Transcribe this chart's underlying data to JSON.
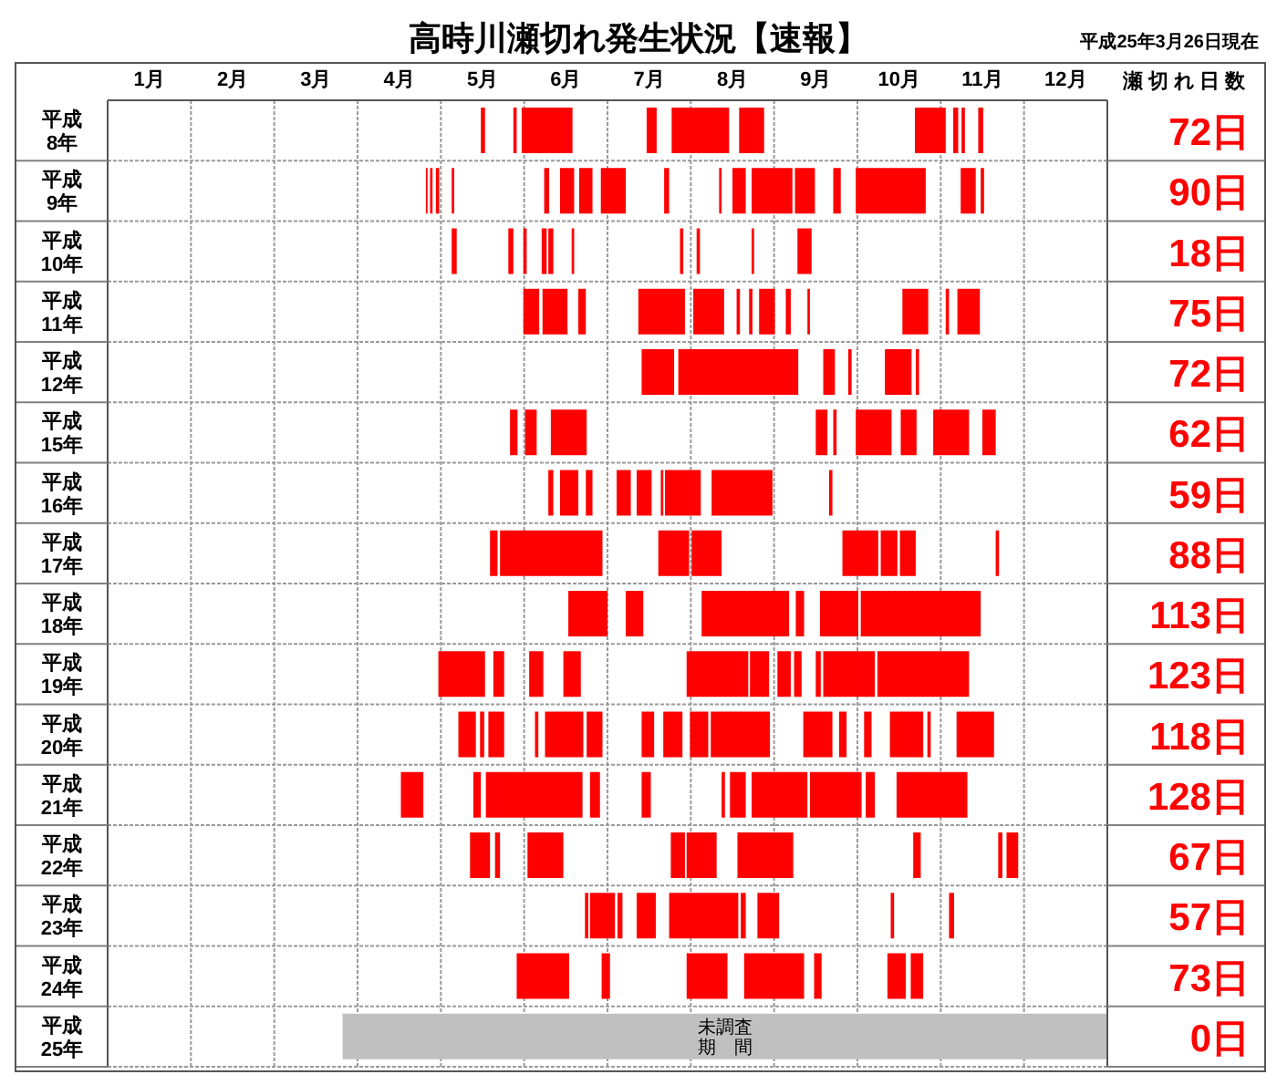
{
  "chart_data": {
    "type": "bar",
    "orientation": "horizontal",
    "title": "高時川瀬切れ発生状況【速報】",
    "annotations": [
      "平成25年3月26日現在",
      "瀬 切 れ 日 数",
      "72日",
      "90日",
      "18日",
      "75日",
      "72日",
      "62日",
      "59日",
      "88日",
      "113日",
      "123日",
      "118日",
      "128日",
      "67日",
      "57日",
      "73日",
      "0日"
    ],
    "categories": [
      "平成\n8年",
      "平成\n9年",
      "平成\n10年",
      "平成\n11年",
      "平成\n12年",
      "平成\n15年",
      "平成\n16年",
      "平成\n17年",
      "平成\n18年",
      "平成\n19年",
      "平成\n20年",
      "平成\n21年",
      "平成\n22年",
      "平成\n23年",
      "平成\n24年",
      "平成\n25年"
    ],
    "xlim": [
      0,
      12
    ],
    "xticks": [
      {
        "value": 0,
        "label": null
      },
      {
        "value": 0.5,
        "label": "1月"
      },
      {
        "value": 1,
        "label": null
      },
      {
        "value": 1.5,
        "label": "2月"
      },
      {
        "value": 2,
        "label": null
      },
      {
        "value": 2.5,
        "label": "3月"
      },
      {
        "value": 3,
        "label": null
      },
      {
        "value": 3.5,
        "label": "4月"
      },
      {
        "value": 4,
        "label": null
      },
      {
        "value": 4.5,
        "label": "5月"
      },
      {
        "value": 5,
        "label": null
      },
      {
        "value": 5.5,
        "label": "6月"
      },
      {
        "value": 6,
        "label": null
      },
      {
        "value": 6.5,
        "label": "7月"
      },
      {
        "value": 7,
        "label": null
      },
      {
        "value": 7.5,
        "label": "8月"
      },
      {
        "value": 8,
        "label": null
      },
      {
        "value": 8.5,
        "label": "9月"
      },
      {
        "value": 9,
        "label": null
      },
      {
        "value": 9.5,
        "label": "10月"
      },
      {
        "value": 10,
        "label": null
      },
      {
        "value": 10.5,
        "label": "11月"
      },
      {
        "value": 11,
        "label": null
      },
      {
        "value": 11.5,
        "label": "12月"
      },
      {
        "value": 12,
        "label": null
      }
    ],
    "grid": true,
    "series": [
      {
        "color": "#ff0000",
        "base": [
          4.48,
          3.82,
          4.13,
          4.99,
          6.41,
          4.83,
          5.29,
          4.59,
          5.53,
          3.97,
          4.21,
          3.52,
          4.35,
          5.73,
          4.91,
          null
        ],
        "values": [
          0.05,
          0.02,
          0.06,
          0.19,
          0.39,
          0.09,
          0.06,
          0.09,
          0.47,
          0.56,
          0.21,
          0.27,
          0.24,
          0.04,
          0.63,
          null
        ]
      },
      {
        "color": "#ff0000",
        "base": [
          4.87,
          3.87,
          4.81,
          5.22,
          6.85,
          5.01,
          5.43,
          4.71,
          6.22,
          4.63,
          4.47,
          4.39,
          4.65,
          5.79,
          5.93,
          null
        ],
        "values": [
          0.04,
          0.03,
          0.06,
          0.3,
          1.44,
          0.14,
          0.22,
          1.23,
          0.21,
          0.13,
          0.05,
          0.09,
          0.06,
          0.3,
          0.1,
          null
        ]
      },
      {
        "color": "#ff0000",
        "base": [
          4.97,
          3.94,
          4.99,
          5.65,
          8.59,
          5.32,
          5.74,
          6.61,
          7.13,
          5.06,
          4.57,
          4.54,
          5.04,
          6.12,
          6.95,
          null
        ],
        "values": [
          0.61,
          0.04,
          0.04,
          0.09,
          0.14,
          0.43,
          0.08,
          0.37,
          1.05,
          0.17,
          0.19,
          1.16,
          0.43,
          0.06,
          0.49,
          null
        ]
      },
      {
        "color": "#ff0000",
        "base": [
          6.47,
          4.13,
          5.21,
          6.37,
          8.89,
          8.5,
          6.11,
          7.01,
          8.26,
          5.47,
          5.13,
          5.79,
          6.76,
          6.35,
          7.64,
          null
        ],
        "values": [
          0.12,
          0.03,
          0.06,
          0.56,
          0.04,
          0.14,
          0.17,
          0.36,
          0.1,
          0.21,
          0.04,
          0.12,
          0.17,
          0.23,
          0.72,
          null
        ]
      },
      {
        "color": "#ff0000",
        "base": [
          6.77,
          5.24,
          5.29,
          7.03,
          9.33,
          8.71,
          6.35,
          8.82,
          8.55,
          6.95,
          5.25,
          6.41,
          6.95,
          6.74,
          8.48,
          null
        ],
        "values": [
          0.69,
          0.06,
          0.06,
          0.37,
          0.32,
          0.04,
          0.18,
          0.43,
          0.46,
          0.74,
          0.46,
          0.11,
          0.36,
          0.83,
          0.09,
          null
        ]
      },
      {
        "color": "#ff0000",
        "base": [
          7.58,
          5.43,
          5.57,
          7.55,
          9.7,
          8.98,
          6.64,
          9.28,
          9.04,
          7.71,
          5.75,
          7.37,
          7.56,
          7.6,
          9.36,
          null
        ],
        "values": [
          0.3,
          0.17,
          0.03,
          0.04,
          0.04,
          0.43,
          0.03,
          0.2,
          1.44,
          0.23,
          0.19,
          0.04,
          0.67,
          0.06,
          0.22,
          null
        ]
      },
      {
        "color": "#ff0000",
        "base": [
          9.69,
          5.66,
          6.87,
          7.7,
          null,
          9.52,
          6.69,
          9.51,
          null,
          8.04,
          6.41,
          7.47,
          9.67,
          7.8,
          9.64,
          null
        ],
        "values": [
          0.37,
          0.16,
          0.04,
          0.04,
          null,
          0.19,
          0.43,
          0.19,
          null,
          0.16,
          0.15,
          0.19,
          0.09,
          0.26,
          0.15,
          null
        ]
      },
      {
        "color": "#ff0000",
        "base": [
          10.15,
          5.92,
          7.07,
          7.82,
          null,
          9.91,
          7.25,
          10.66,
          null,
          8.24,
          6.67,
          7.73,
          10.69,
          9.4,
          null,
          null
        ],
        "values": [
          0.06,
          0.3,
          0.04,
          0.19,
          null,
          0.43,
          0.73,
          0.04,
          null,
          0.09,
          0.23,
          0.67,
          0.05,
          0.04,
          null,
          null
        ]
      },
      {
        "color": "#ff0000",
        "base": [
          10.25,
          6.68,
          7.73,
          8.14,
          null,
          10.5,
          8.66,
          null,
          null,
          8.5,
          6.99,
          8.43,
          10.79,
          10.1,
          null,
          null
        ],
        "values": [
          0.04,
          0.06,
          0.03,
          0.06,
          null,
          0.16,
          0.04,
          null,
          null,
          0.06,
          0.22,
          0.62,
          0.14,
          0.06,
          null,
          null
        ]
      },
      {
        "color": "#ff0000",
        "base": [
          10.45,
          7.34,
          8.28,
          8.4,
          null,
          null,
          null,
          null,
          null,
          8.59,
          7.24,
          9.1,
          null,
          null,
          null,
          null
        ],
        "values": [
          0.06,
          0.03,
          0.17,
          0.03,
          null,
          null,
          null,
          null,
          null,
          0.62,
          0.71,
          0.11,
          null,
          null,
          null,
          null
        ]
      },
      {
        "color": "#ff0000",
        "base": [
          null,
          7.5,
          null,
          9.54,
          null,
          null,
          null,
          null,
          null,
          9.24,
          8.35,
          9.47,
          null,
          null,
          null,
          null
        ],
        "values": [
          null,
          0.16,
          null,
          0.31,
          null,
          null,
          null,
          null,
          null,
          1.1,
          0.35,
          0.85,
          null,
          null,
          null,
          null
        ]
      },
      {
        "color": "#ff0000",
        "base": [
          null,
          7.73,
          null,
          10.06,
          null,
          null,
          null,
          null,
          null,
          null,
          8.78,
          null,
          null,
          null,
          null,
          null
        ],
        "values": [
          null,
          0.49,
          null,
          0.04,
          null,
          null,
          null,
          null,
          null,
          null,
          0.09,
          null,
          null,
          null,
          null,
          null
        ]
      },
      {
        "color": "#ff0000",
        "base": [
          null,
          8.25,
          null,
          10.2,
          null,
          null,
          null,
          null,
          null,
          null,
          9.08,
          null,
          null,
          null,
          null,
          null
        ],
        "values": [
          null,
          0.24,
          null,
          0.27,
          null,
          null,
          null,
          null,
          null,
          null,
          0.09,
          null,
          null,
          null,
          null,
          null
        ]
      },
      {
        "color": "#ff0000",
        "base": [
          null,
          8.71,
          null,
          null,
          null,
          null,
          null,
          null,
          null,
          null,
          9.39,
          null,
          null,
          null,
          null,
          null
        ],
        "values": [
          null,
          0.09,
          null,
          null,
          null,
          null,
          null,
          null,
          null,
          null,
          0.4,
          null,
          null,
          null,
          null,
          null
        ]
      },
      {
        "color": "#ff0000",
        "base": [
          null,
          8.98,
          null,
          null,
          null,
          null,
          null,
          null,
          null,
          null,
          9.84,
          null,
          null,
          null,
          null,
          null
        ],
        "values": [
          null,
          0.84,
          null,
          null,
          null,
          null,
          null,
          null,
          null,
          null,
          0.04,
          null,
          null,
          null,
          null,
          null
        ]
      },
      {
        "color": "#ff0000",
        "base": [
          null,
          10.24,
          null,
          null,
          null,
          null,
          null,
          null,
          null,
          null,
          10.19,
          null,
          null,
          null,
          null,
          null
        ],
        "values": [
          null,
          0.18,
          null,
          null,
          null,
          null,
          null,
          null,
          null,
          null,
          0.45,
          null,
          null,
          null,
          null,
          null
        ]
      },
      {
        "color": "#ff0000",
        "base": [
          null,
          10.48,
          null,
          null,
          null,
          null,
          null,
          null,
          null,
          null,
          null,
          null,
          null,
          null,
          null,
          null
        ],
        "values": [
          null,
          0.04,
          null,
          null,
          null,
          null,
          null,
          null,
          null,
          null,
          null,
          null,
          null,
          null,
          null,
          null
        ]
      },
      {
        "color": "#c0c0c0",
        "base": [
          null,
          null,
          null,
          null,
          null,
          null,
          null,
          null,
          null,
          null,
          null,
          null,
          null,
          null,
          null,
          2.82
        ],
        "values": [
          null,
          null,
          null,
          null,
          null,
          null,
          null,
          null,
          null,
          null,
          null,
          null,
          null,
          null,
          null,
          9.18
        ],
        "value_labels": [
          null,
          null,
          null,
          null,
          null,
          null,
          null,
          null,
          null,
          null,
          null,
          null,
          null,
          null,
          null,
          "未調査期　間"
        ]
      }
    ]
  }
}
